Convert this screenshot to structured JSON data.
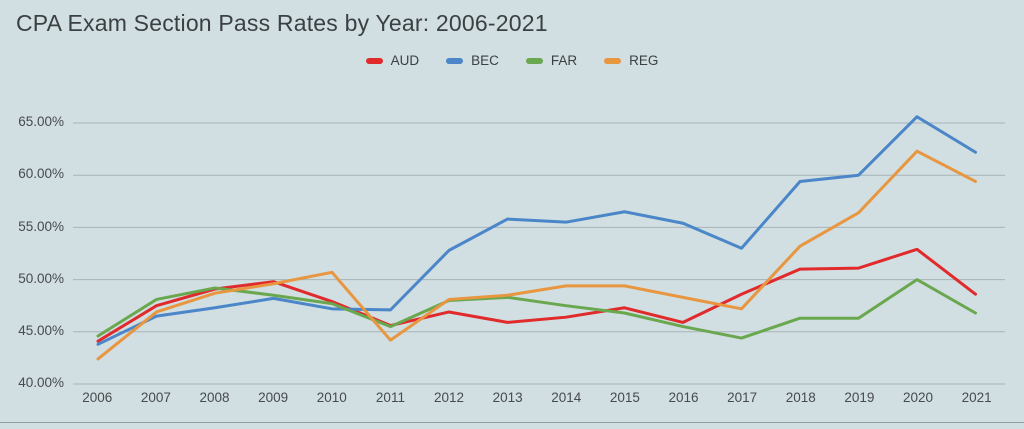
{
  "title": "CPA Exam Section Pass Rates by Year: 2006-2021",
  "colors": {
    "background": "#d1dee2",
    "gridline": "#a7b4b8",
    "text": "#3b4043",
    "aud": "#e12a2b",
    "bec": "#4a86c8",
    "far": "#6aa84f",
    "reg": "#e8963f"
  },
  "chart_data": {
    "type": "line",
    "title": "CPA Exam Section Pass Rates by Year: 2006-2021",
    "xlabel": "",
    "ylabel": "",
    "y_unit": "percent",
    "ylim": [
      40,
      67
    ],
    "grid": true,
    "legend_position": "top",
    "y_ticks": [
      65,
      60,
      55,
      50,
      45,
      40
    ],
    "y_tick_labels": [
      "65.00%",
      "60.00%",
      "55.00%",
      "50.00%",
      "45.00%",
      "40.00%"
    ],
    "categories": [
      "2006",
      "2007",
      "2008",
      "2009",
      "2010",
      "2011",
      "2012",
      "2013",
      "2014",
      "2015",
      "2016",
      "2017",
      "2018",
      "2019",
      "2020",
      "2021"
    ],
    "series": [
      {
        "name": "AUD",
        "color": "#e12a2b",
        "values": [
          44.1,
          47.5,
          49.1,
          49.8,
          47.9,
          45.6,
          46.9,
          45.9,
          46.4,
          47.3,
          45.9,
          48.6,
          51.0,
          51.1,
          52.9,
          48.6
        ]
      },
      {
        "name": "BEC",
        "color": "#4a86c8",
        "values": [
          43.8,
          46.5,
          47.3,
          48.2,
          47.2,
          47.1,
          52.8,
          55.8,
          55.5,
          56.5,
          55.4,
          53.0,
          59.4,
          60.0,
          65.6,
          62.2
        ]
      },
      {
        "name": "FAR",
        "color": "#6aa84f",
        "values": [
          44.6,
          48.1,
          49.2,
          48.5,
          47.7,
          45.5,
          48.0,
          48.3,
          47.5,
          46.8,
          45.5,
          44.4,
          46.3,
          46.3,
          50.0,
          46.8
        ]
      },
      {
        "name": "REG",
        "color": "#e8963f",
        "values": [
          42.4,
          46.9,
          48.7,
          49.6,
          50.7,
          44.2,
          48.1,
          48.5,
          49.4,
          49.4,
          48.3,
          47.2,
          53.2,
          56.4,
          62.3,
          59.4
        ]
      }
    ]
  }
}
